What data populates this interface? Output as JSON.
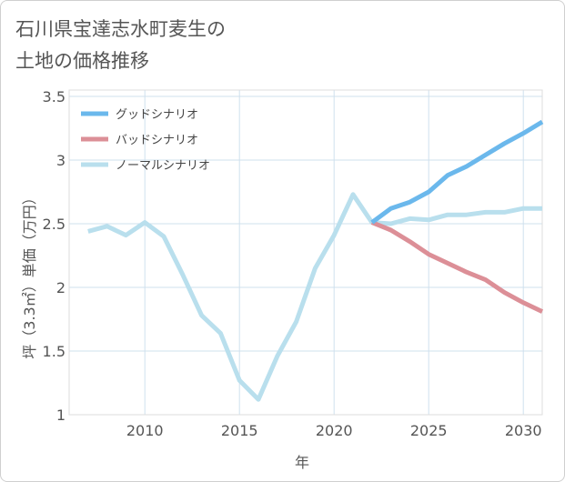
{
  "title_line1": "石川県宝達志水町麦生の",
  "title_line2": "土地の価格推移",
  "chart_data": {
    "type": "line",
    "xlabel": "年",
    "ylabel": "坪（3.3㎡）単価（万円）",
    "xlim": [
      2006,
      2031
    ],
    "ylim": [
      1,
      3.55
    ],
    "xticks": [
      2010,
      2015,
      2020,
      2025,
      2030
    ],
    "yticks": [
      1,
      1.5,
      2,
      2.5,
      3,
      3.5
    ],
    "ytick_labels": [
      "1",
      "1.5",
      "2",
      "2.5",
      "3",
      "3.5"
    ],
    "grid": true,
    "legend_position": "top-left",
    "series": [
      {
        "name": "グッドシナリオ",
        "color": "#6bb8ec",
        "x": [
          2022,
          2023,
          2024,
          2025,
          2026,
          2027,
          2028,
          2029,
          2030,
          2031
        ],
        "values": [
          2.51,
          2.62,
          2.67,
          2.75,
          2.88,
          2.95,
          3.04,
          3.13,
          3.21,
          3.3
        ]
      },
      {
        "name": "バッドシナリオ",
        "color": "#dc8f97",
        "x": [
          2022,
          2023,
          2024,
          2025,
          2026,
          2027,
          2028,
          2029,
          2030,
          2031
        ],
        "values": [
          2.51,
          2.45,
          2.36,
          2.26,
          2.19,
          2.12,
          2.06,
          1.96,
          1.88,
          1.81
        ]
      },
      {
        "name": "ノーマルシナリオ",
        "color": "#b9dfed",
        "x": [
          2007,
          2008,
          2009,
          2010,
          2011,
          2012,
          2013,
          2014,
          2015,
          2016,
          2017,
          2018,
          2019,
          2020,
          2021,
          2022,
          2023,
          2024,
          2025,
          2026,
          2027,
          2028,
          2029,
          2030,
          2031
        ],
        "values": [
          2.44,
          2.48,
          2.41,
          2.51,
          2.4,
          2.1,
          1.78,
          1.64,
          1.27,
          1.12,
          1.46,
          1.73,
          2.15,
          2.41,
          2.73,
          2.51,
          2.5,
          2.54,
          2.53,
          2.57,
          2.57,
          2.59,
          2.59,
          2.62,
          2.62
        ]
      }
    ]
  }
}
